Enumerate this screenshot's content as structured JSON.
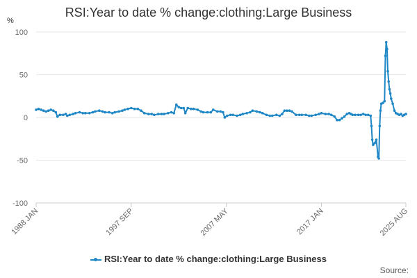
{
  "chart_data": {
    "type": "line",
    "title": "RSI:Year to date % change:clothing:Large Business",
    "yunit": "%",
    "ylim": [
      -100,
      100
    ],
    "yticks": [
      100,
      50,
      0,
      -50,
      -100
    ],
    "xticks": [
      "1988 JAN",
      "1997 SEP",
      "2007 MAY",
      "2017 JAN",
      "2025 AUG"
    ],
    "grid": true,
    "legend_position": "bottom",
    "series": [
      {
        "name": "RSI:Year to date % change:clothing:Large Business",
        "color": "#1f87c6",
        "points": [
          [
            "1988 JAN",
            9
          ],
          [
            "1988 APR",
            10
          ],
          [
            "1988 JUL",
            9
          ],
          [
            "1988 OCT",
            8
          ],
          [
            "1989 JAN",
            7
          ],
          [
            "1989 APR",
            8
          ],
          [
            "1989 JUL",
            9
          ],
          [
            "1989 OCT",
            8
          ],
          [
            "1990 JAN",
            6
          ],
          [
            "1990 MAR",
            1
          ],
          [
            "1990 JUN",
            3
          ],
          [
            "1990 OCT",
            3
          ],
          [
            "1991 JAN",
            4
          ],
          [
            "1991 MAR",
            2
          ],
          [
            "1991 JUN",
            3
          ],
          [
            "1991 OCT",
            4
          ],
          [
            "1992 JAN",
            5
          ],
          [
            "1992 JUN",
            6
          ],
          [
            "1992 OCT",
            5
          ],
          [
            "1993 JAN",
            5
          ],
          [
            "1993 JUN",
            5
          ],
          [
            "1993 OCT",
            6
          ],
          [
            "1994 JAN",
            7
          ],
          [
            "1994 JUN",
            8
          ],
          [
            "1994 OCT",
            7
          ],
          [
            "1995 JAN",
            6
          ],
          [
            "1995 JUN",
            6
          ],
          [
            "1995 OCT",
            5
          ],
          [
            "1996 JAN",
            6
          ],
          [
            "1996 JUN",
            7
          ],
          [
            "1996 OCT",
            8
          ],
          [
            "1997 JAN",
            9
          ],
          [
            "1997 MAY",
            10
          ],
          [
            "1997 SEP",
            11
          ],
          [
            "1998 JAN",
            10
          ],
          [
            "1998 MAY",
            10
          ],
          [
            "1998 SEP",
            8
          ],
          [
            "1999 JAN",
            5
          ],
          [
            "1999 JUN",
            4
          ],
          [
            "1999 OCT",
            4
          ],
          [
            "2000 JAN",
            3
          ],
          [
            "2000 JUN",
            4
          ],
          [
            "2000 OCT",
            4
          ],
          [
            "2001 JAN",
            4
          ],
          [
            "2001 JUN",
            5
          ],
          [
            "2001 OCT",
            6
          ],
          [
            "2002 JAN",
            5
          ],
          [
            "2002 APR",
            15
          ],
          [
            "2002 JUL",
            12
          ],
          [
            "2002 OCT",
            11
          ],
          [
            "2003 JAN",
            11
          ],
          [
            "2003 MAR",
            5
          ],
          [
            "2003 JUN",
            11
          ],
          [
            "2003 OCT",
            10
          ],
          [
            "2004 JAN",
            10
          ],
          [
            "2004 JUN",
            9
          ],
          [
            "2004 OCT",
            7
          ],
          [
            "2005 JAN",
            6
          ],
          [
            "2005 JUN",
            6
          ],
          [
            "2005 OCT",
            6
          ],
          [
            "2006 JAN",
            9
          ],
          [
            "2006 JUN",
            7
          ],
          [
            "2006 OCT",
            7
          ],
          [
            "2007 JAN",
            6
          ],
          [
            "2007 MAR",
            0
          ],
          [
            "2007 JUN",
            2
          ],
          [
            "2007 OCT",
            3
          ],
          [
            "2008 JAN",
            3
          ],
          [
            "2008 JUN",
            2
          ],
          [
            "2008 OCT",
            3
          ],
          [
            "2009 JAN",
            4
          ],
          [
            "2009 JUN",
            5
          ],
          [
            "2009 OCT",
            6
          ],
          [
            "2010 JAN",
            8
          ],
          [
            "2010 JUN",
            7
          ],
          [
            "2010 OCT",
            6
          ],
          [
            "2011 JAN",
            5
          ],
          [
            "2011 JUN",
            3
          ],
          [
            "2011 OCT",
            2
          ],
          [
            "2012 JAN",
            2
          ],
          [
            "2012 JUN",
            3
          ],
          [
            "2012 OCT",
            2
          ],
          [
            "2013 JAN",
            4
          ],
          [
            "2013 APR",
            8
          ],
          [
            "2013 JUL",
            8
          ],
          [
            "2013 OCT",
            8
          ],
          [
            "2014 JAN",
            7
          ],
          [
            "2014 JUN",
            3
          ],
          [
            "2014 OCT",
            3
          ],
          [
            "2015 JAN",
            3
          ],
          [
            "2015 JUN",
            3
          ],
          [
            "2015 OCT",
            2
          ],
          [
            "2016 JAN",
            2
          ],
          [
            "2016 JUN",
            3
          ],
          [
            "2016 OCT",
            4
          ],
          [
            "2017 JAN",
            5
          ],
          [
            "2017 JUN",
            4
          ],
          [
            "2017 OCT",
            4
          ],
          [
            "2018 JAN",
            3
          ],
          [
            "2018 MAY",
            1
          ],
          [
            "2018 AUG",
            -3
          ],
          [
            "2018 NOV",
            -3
          ],
          [
            "2019 FEB",
            -1
          ],
          [
            "2019 MAY",
            1
          ],
          [
            "2019 AUG",
            4
          ],
          [
            "2019 NOV",
            5
          ],
          [
            "2020 JAN",
            4
          ],
          [
            "2020 MAR",
            3
          ],
          [
            "2020 JUN",
            3
          ],
          [
            "2020 OCT",
            3
          ],
          [
            "2021 JAN",
            3
          ],
          [
            "2021 APR",
            4
          ],
          [
            "2021 JUL",
            3
          ],
          [
            "2021 OCT",
            3
          ],
          [
            "2022 JAN",
            2
          ],
          [
            "2022 FEB",
            -10
          ],
          [
            "2022 MAR",
            -26
          ],
          [
            "2022 APR",
            -32
          ],
          [
            "2022 JUN",
            -30
          ],
          [
            "2022 AUG",
            -26
          ],
          [
            "2022 OCT",
            -46
          ],
          [
            "2022 NOV",
            -48
          ],
          [
            "2022 DEC",
            -10
          ],
          [
            "2023 JAN",
            8
          ],
          [
            "2023 FEB",
            16
          ],
          [
            "2023 APR",
            17
          ],
          [
            "2023 JUN",
            19
          ],
          [
            "2023 JUL",
            72
          ],
          [
            "2023 AUG",
            88
          ],
          [
            "2023 SEP",
            80
          ],
          [
            "2023 OCT",
            54
          ],
          [
            "2023 NOV",
            42
          ],
          [
            "2023 DEC",
            33
          ],
          [
            "2024 JAN",
            28
          ],
          [
            "2024 FEB",
            22
          ],
          [
            "2024 APR",
            16
          ],
          [
            "2024 JUN",
            8
          ],
          [
            "2024 AUG",
            5
          ],
          [
            "2024 OCT",
            4
          ],
          [
            "2024 DEC",
            3
          ],
          [
            "2025 FEB",
            4
          ],
          [
            "2025 APR",
            2
          ],
          [
            "2025 JUN",
            3
          ],
          [
            "2025 AUG",
            4
          ]
        ]
      }
    ]
  },
  "source_label": "Source:"
}
